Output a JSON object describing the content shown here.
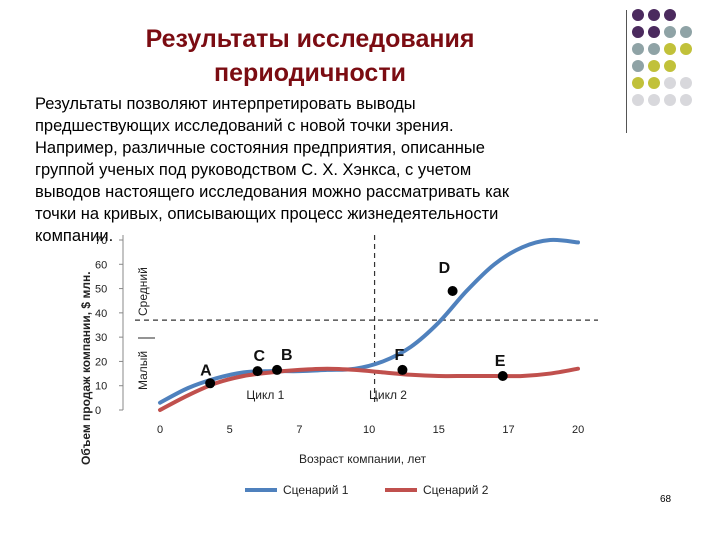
{
  "slide": {
    "title_line1": "Результаты исследования",
    "title_line2": "периодичности",
    "body_lines": [
      "Результаты позволяют интерпретировать выводы",
      "предшествующих исследований с новой точки зрения.",
      "Например, различные состояния предприятия, описанные",
      "группой ученых под руководством С. Х. Хэнкса, с учетом",
      "выводов настоящего исследования можно рассматривать как",
      "точки на кривых, описывающих процесс жизнедеятельности",
      "компании."
    ],
    "page_number": "68",
    "title_color": "#7b0c12",
    "decor_dot_colors": [
      "#4b2a5e",
      "#8fa3a6",
      "#c1c13a",
      "#d8d8dc"
    ]
  },
  "chart": {
    "ylabel": "Объем продаж компании, $ млн.",
    "xlabel": "Возраст компании, лет",
    "y_ticks": [
      "0",
      "10",
      "20",
      "30",
      "40",
      "50",
      "60",
      "70"
    ],
    "x_ticks": [
      "0",
      "5",
      "7",
      "10",
      "15",
      "17",
      "20"
    ],
    "size_labels": {
      "small": "Малый",
      "medium": "Средний"
    },
    "cycle_labels": [
      "Цикл 1",
      "Цикл 2"
    ],
    "point_labels": [
      "A",
      "C",
      "B",
      "D",
      "F",
      "E"
    ],
    "legend": [
      {
        "name": "Сценарий 1",
        "color": "#4f81bd"
      },
      {
        "name": "Сценарий 2",
        "color": "#c0504d"
      }
    ]
  },
  "chart_data": {
    "type": "line",
    "xlabel": "Возраст компании, лет",
    "ylabel": "Объем продаж компании, $ млн.",
    "ylim": [
      0,
      70
    ],
    "x_tick_labels": [
      "0",
      "5",
      "7",
      "10",
      "15",
      "17",
      "20"
    ],
    "series": [
      {
        "name": "Сценарий 1",
        "color": "#4f81bd",
        "points": [
          [
            0,
            3
          ],
          [
            1,
            9
          ],
          [
            2,
            13
          ],
          [
            3,
            15.5
          ],
          [
            4,
            16
          ],
          [
            5,
            16
          ],
          [
            6,
            16.5
          ],
          [
            7,
            17
          ],
          [
            8,
            20
          ],
          [
            9,
            26
          ],
          [
            10,
            36
          ],
          [
            11,
            49
          ],
          [
            12,
            60
          ],
          [
            13,
            67
          ],
          [
            14,
            70
          ],
          [
            15,
            69
          ]
        ]
      },
      {
        "name": "Сценарий 2",
        "color": "#c0504d",
        "points": [
          [
            0,
            0
          ],
          [
            1,
            6
          ],
          [
            2,
            11
          ],
          [
            3,
            14
          ],
          [
            4,
            15.5
          ],
          [
            5,
            16.5
          ],
          [
            6,
            17
          ],
          [
            7,
            16.5
          ],
          [
            8,
            15.5
          ],
          [
            9,
            14.5
          ],
          [
            10,
            14
          ],
          [
            11,
            14
          ],
          [
            12,
            14
          ],
          [
            13,
            14
          ],
          [
            14,
            15
          ],
          [
            15,
            17
          ]
        ]
      }
    ],
    "reference_lines": {
      "x": 7.7,
      "y": 37
    },
    "labeled_points": [
      {
        "label": "A",
        "x": 1.8,
        "y": 11
      },
      {
        "label": "C",
        "x": 3.5,
        "y": 16
      },
      {
        "label": "B",
        "x": 4.2,
        "y": 16.5
      },
      {
        "label": "D",
        "x": 10.5,
        "y": 49
      },
      {
        "label": "F",
        "x": 8.7,
        "y": 16.5
      },
      {
        "label": "E",
        "x": 12.3,
        "y": 14
      }
    ]
  }
}
